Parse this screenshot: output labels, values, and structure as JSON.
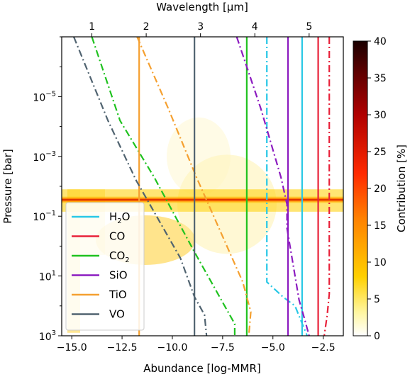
{
  "chart_data": {
    "type": "line",
    "xlabel": "Abundance [log-MMR]",
    "ylabel": "Pressure [bar]",
    "x_top_label": "Wavelength [μm]",
    "colorbar_label": "Contribution [%]",
    "xlim": [
      -15.5,
      -1.5
    ],
    "ylim_log10": [
      3,
      -7
    ],
    "x_ticks": [
      {
        "value": -15,
        "label": "−15.0"
      },
      {
        "value": -12.5,
        "label": "−12.5"
      },
      {
        "value": -10,
        "label": "−10.0"
      },
      {
        "value": -7.5,
        "label": "−7.5"
      },
      {
        "value": -5,
        "label": "−5.0"
      },
      {
        "value": -2.5,
        "label": "−2.5"
      }
    ],
    "y_ticks": [
      {
        "exp": -5,
        "base": "10",
        "sup": "−5"
      },
      {
        "exp": -3,
        "base": "10",
        "sup": "−3"
      },
      {
        "exp": -1,
        "base": "10",
        "sup": "−1"
      },
      {
        "exp": 1,
        "base": "10",
        "sup": "1"
      },
      {
        "exp": 3,
        "base": "10",
        "sup": "3"
      }
    ],
    "wavelength_ticks": [
      {
        "label": "1",
        "x": -14.0
      },
      {
        "label": "2",
        "x": -11.3
      },
      {
        "label": "3",
        "x": -8.6
      },
      {
        "label": "4",
        "x": -5.9
      },
      {
        "label": "5",
        "x": -3.2
      }
    ],
    "colorbar": {
      "min": 0,
      "max": 40,
      "ticks": [
        "0",
        "5",
        "10",
        "15",
        "20",
        "25",
        "30",
        "35",
        "40"
      ]
    },
    "series": [
      {
        "name": "H2O",
        "name_base": "H",
        "name_sub": "2",
        "name_tail": "O",
        "color": "#29c8e6",
        "constant": -3.55,
        "free": [
          [
            -5.3,
            -7
          ],
          [
            -5.3,
            1.2
          ],
          [
            -4.5,
            1.7
          ],
          [
            -3.9,
            2.0
          ],
          [
            -3.6,
            2.5
          ],
          [
            -3.3,
            3
          ]
        ]
      },
      {
        "name": "CO",
        "color": "#e8213a",
        "constant": -2.75,
        "free": [
          [
            -2.2,
            -7
          ],
          [
            -2.2,
            1.6
          ],
          [
            -2.3,
            2.3
          ],
          [
            -2.45,
            3
          ]
        ]
      },
      {
        "name": "CO2",
        "name_base": "CO",
        "name_sub": "2",
        "name_tail": "",
        "color": "#1fc21f",
        "constant": -6.3,
        "free": [
          [
            -14.0,
            -7
          ],
          [
            -12.6,
            -4.2
          ],
          [
            -10.9,
            -2.3
          ],
          [
            -8.9,
            0.2
          ],
          [
            -7.4,
            2.0
          ],
          [
            -6.9,
            2.6
          ],
          [
            -6.9,
            3
          ]
        ]
      },
      {
        "name": "SiO",
        "color": "#8c1bc0",
        "constant": -4.25,
        "free": [
          [
            -6.8,
            -7
          ],
          [
            -5.6,
            -4.6
          ],
          [
            -4.6,
            -2.3
          ],
          [
            -4.3,
            -1.4
          ],
          [
            -4.3,
            -0.6
          ],
          [
            -3.7,
            1.8
          ],
          [
            -3.4,
            2.5
          ],
          [
            -3.2,
            3
          ]
        ]
      },
      {
        "name": "TiO",
        "color": "#f5a030",
        "constant": -11.65,
        "free": [
          [
            -11.75,
            -7
          ],
          [
            -10.2,
            -4.6
          ],
          [
            -8.8,
            -2.3
          ],
          [
            -6.5,
            1.2
          ],
          [
            -6.1,
            2.2
          ],
          [
            -6.2,
            3
          ]
        ]
      },
      {
        "name": "VO",
        "color": "#506370",
        "constant": -8.9,
        "free": [
          [
            -14.9,
            -7
          ],
          [
            -13.2,
            -4.2
          ],
          [
            -11.8,
            -2.2
          ],
          [
            -9.6,
            0.4
          ],
          [
            -8.9,
            1.7
          ],
          [
            -8.4,
            2.3
          ],
          [
            -8.3,
            3
          ]
        ]
      }
    ]
  }
}
